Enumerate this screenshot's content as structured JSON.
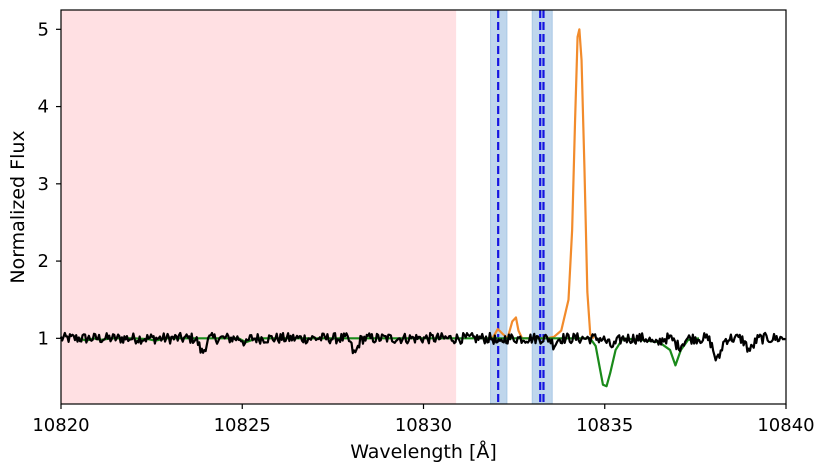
{
  "chart_data": {
    "type": "line",
    "xlabel": "Wavelength [Å]",
    "ylabel": "Normalized Flux",
    "xlim": [
      10820,
      10840
    ],
    "ylim": [
      0.15,
      5.25
    ],
    "grid": false,
    "x_ticks": [
      10820,
      10825,
      10830,
      10835,
      10840
    ],
    "y_ticks": [
      1,
      2,
      3,
      4,
      5
    ],
    "masked_region": {
      "x": [
        10820,
        10830.9
      ],
      "color": "#ffe0e3"
    },
    "line_bands": [
      {
        "x": [
          10831.85,
          10832.3
        ]
      },
      {
        "x": [
          10833.0,
          10833.55
        ]
      }
    ],
    "line_markers": [
      10832.06,
      10833.22,
      10833.31
    ],
    "colors": {
      "observed": "#000000",
      "model_absorption": "#1a8a1a",
      "model_emission": "#f28b2b",
      "band": "#a9c8e6",
      "marker": "#1515e0"
    },
    "series": [
      {
        "style": "model_emission",
        "x": [
          10831.9,
          10832.05,
          10832.2,
          10832.32,
          10832.45,
          10832.55,
          10832.62,
          10832.72,
          10832.85,
          10833.2,
          10833.4,
          10833.6,
          10833.8,
          10834.0,
          10834.1,
          10834.18,
          10834.25,
          10834.3,
          10834.36,
          10834.44,
          10834.52,
          10834.6,
          10834.7
        ],
        "y": [
          1.0,
          1.12,
          1.05,
          1.0,
          1.22,
          1.27,
          1.1,
          1.0,
          1.0,
          1.0,
          1.0,
          1.02,
          1.1,
          1.5,
          2.4,
          3.8,
          4.9,
          5.0,
          4.6,
          3.2,
          1.6,
          1.05,
          1.0
        ]
      },
      {
        "style": "model_absorption",
        "x": [
          10820.5,
          10820.7,
          10820.9,
          10821.1,
          10821.4,
          10822.0,
          10822.4,
          10822.6,
          10822.9,
          10823.4,
          10824.0,
          10824.9,
          10825.1,
          10825.4,
          10834.6,
          10834.75,
          10834.85,
          10834.95,
          10835.05,
          10835.15,
          10835.3,
          10835.5,
          10836.0,
          10836.5,
          10836.8,
          10836.95,
          10837.1,
          10837.3,
          10837.6
        ],
        "y": [
          1.0,
          0.97,
          1.0,
          0.98,
          1.0,
          1.0,
          0.99,
          0.97,
          1.0,
          1.0,
          1.0,
          1.0,
          0.95,
          1.0,
          1.0,
          0.9,
          0.65,
          0.4,
          0.38,
          0.55,
          0.85,
          1.0,
          0.98,
          0.95,
          0.85,
          0.65,
          0.85,
          0.98,
          1.0
        ]
      }
    ]
  }
}
